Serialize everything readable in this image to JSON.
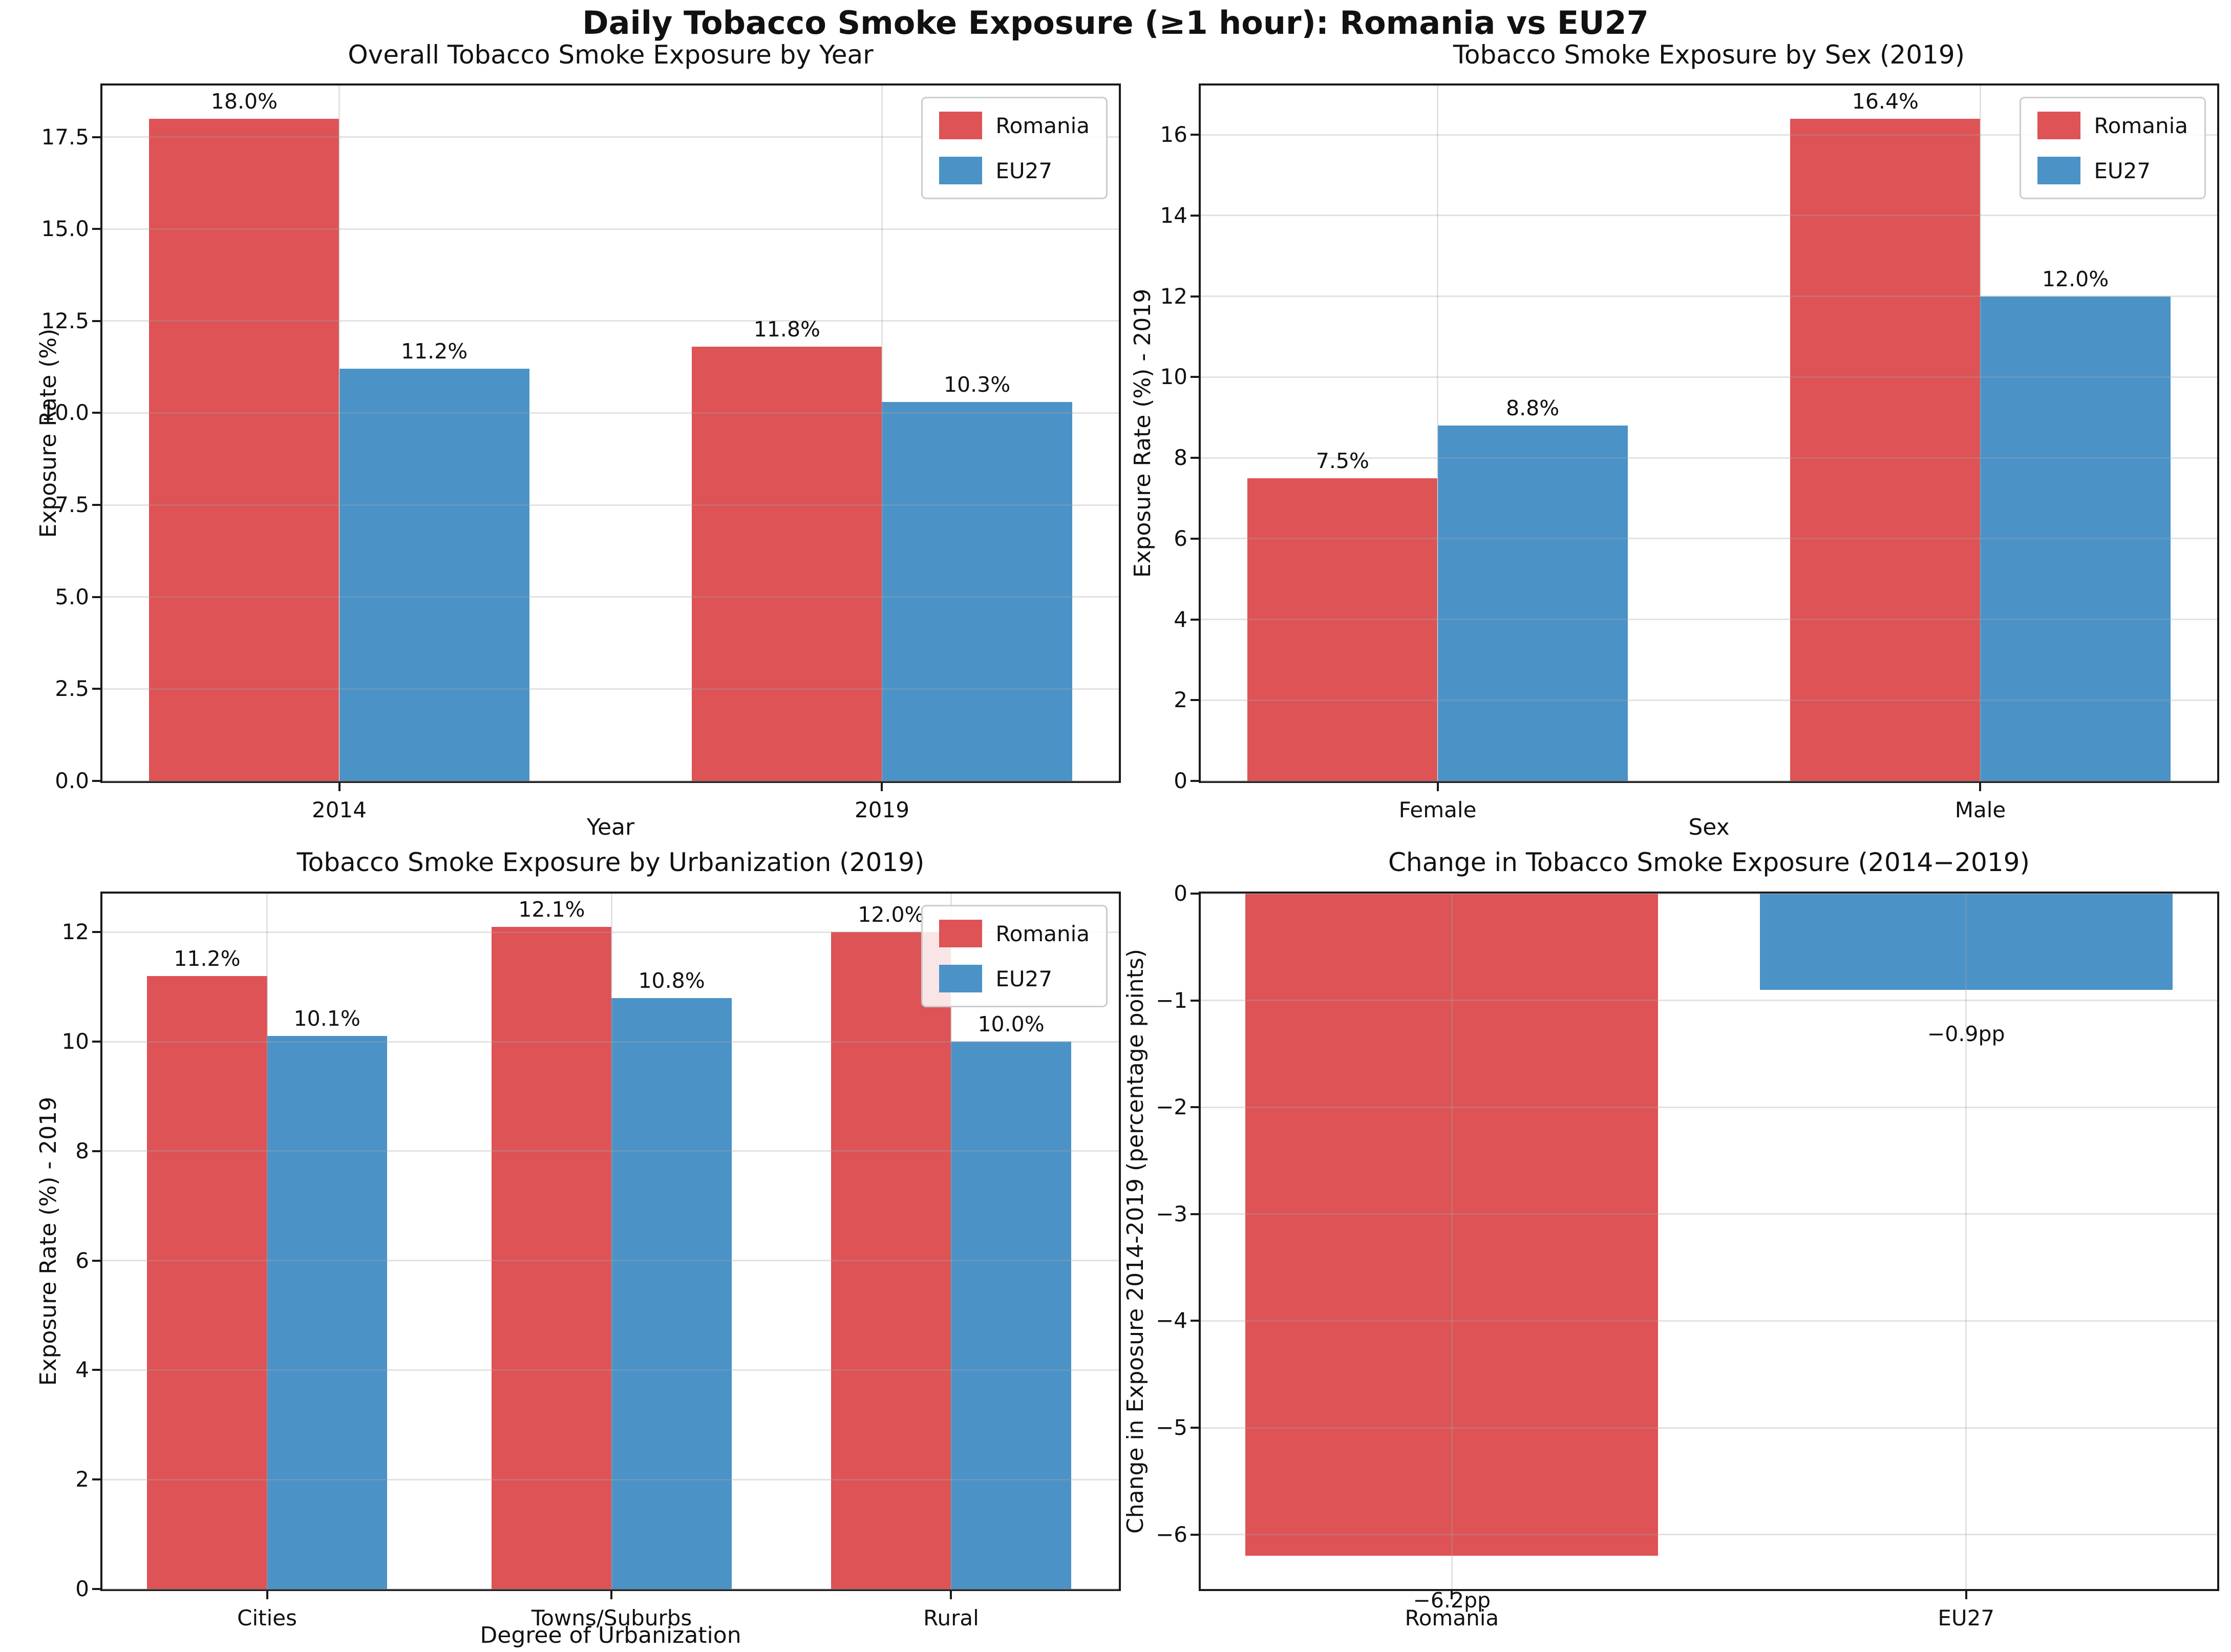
{
  "figure": {
    "title": "Daily Tobacco Smoke Exposure (≥1 hour): Romania vs EU27",
    "colors": {
      "romania": "#dd5356",
      "eu27": "#4b92c7"
    }
  },
  "chart_data": [
    {
      "type": "bar",
      "title": "Overall Tobacco Smoke Exposure by Year",
      "xlabel": "Year",
      "ylabel": "Exposure Rate (%)",
      "categories": [
        "2014",
        "2019"
      ],
      "series": [
        {
          "name": "Romania",
          "color": "#dd5356",
          "values": [
            18.0,
            11.8
          ],
          "labels": [
            "18.0%",
            "11.8%"
          ]
        },
        {
          "name": "EU27",
          "color": "#4b92c7",
          "values": [
            11.2,
            10.3
          ],
          "labels": [
            "11.2%",
            "10.3%"
          ]
        }
      ],
      "ylim": [
        0,
        18.9
      ],
      "yticks": [
        {
          "v": 0,
          "label": "0.0"
        },
        {
          "v": 2.5,
          "label": "2.5"
        },
        {
          "v": 5,
          "label": "5.0"
        },
        {
          "v": 7.5,
          "label": "7.5"
        },
        {
          "v": 10,
          "label": "10.0"
        },
        {
          "v": 12.5,
          "label": "12.5"
        },
        {
          "v": 15,
          "label": "15.0"
        },
        {
          "v": 17.5,
          "label": "17.5"
        }
      ],
      "layout": {
        "centers": [
          0.233,
          0.767
        ],
        "bar_width": 0.187,
        "legend": true,
        "grid": true,
        "legend_position": "upper right"
      }
    },
    {
      "type": "bar",
      "title": "Tobacco Smoke Exposure by Sex (2019)",
      "xlabel": "Sex",
      "ylabel": "Exposure Rate (%) - 2019",
      "categories": [
        "Female",
        "Male"
      ],
      "series": [
        {
          "name": "Romania",
          "color": "#dd5356",
          "values": [
            7.5,
            16.4
          ],
          "labels": [
            "7.5%",
            "16.4%"
          ]
        },
        {
          "name": "EU27",
          "color": "#4b92c7",
          "values": [
            8.8,
            12.0
          ],
          "labels": [
            "8.8%",
            "12.0%"
          ]
        }
      ],
      "ylim": [
        0,
        17.22
      ],
      "yticks": [
        {
          "v": 0,
          "label": "0"
        },
        {
          "v": 2,
          "label": "2"
        },
        {
          "v": 4,
          "label": "4"
        },
        {
          "v": 6,
          "label": "6"
        },
        {
          "v": 8,
          "label": "8"
        },
        {
          "v": 10,
          "label": "10"
        },
        {
          "v": 12,
          "label": "12"
        },
        {
          "v": 14,
          "label": "14"
        },
        {
          "v": 16,
          "label": "16"
        }
      ],
      "layout": {
        "centers": [
          0.233,
          0.767
        ],
        "bar_width": 0.187,
        "legend": true,
        "grid": true,
        "legend_position": "upper right"
      }
    },
    {
      "type": "bar",
      "title": "Tobacco Smoke Exposure by Urbanization (2019)",
      "xlabel": "Degree of Urbanization",
      "ylabel": "Exposure Rate (%) - 2019",
      "categories": [
        "Cities",
        "Towns/Suburbs",
        "Rural"
      ],
      "series": [
        {
          "name": "Romania",
          "color": "#dd5356",
          "values": [
            11.2,
            12.1,
            12.0
          ],
          "labels": [
            "11.2%",
            "12.1%",
            "12.0%"
          ]
        },
        {
          "name": "EU27",
          "color": "#4b92c7",
          "values": [
            10.1,
            10.8,
            10.0
          ],
          "labels": [
            "10.1%",
            "10.8%",
            "10.0%"
          ]
        }
      ],
      "ylim": [
        0,
        12.705
      ],
      "yticks": [
        {
          "v": 0,
          "label": "0"
        },
        {
          "v": 2,
          "label": "2"
        },
        {
          "v": 4,
          "label": "4"
        },
        {
          "v": 6,
          "label": "6"
        },
        {
          "v": 8,
          "label": "8"
        },
        {
          "v": 10,
          "label": "10"
        },
        {
          "v": 12,
          "label": "12"
        }
      ],
      "layout": {
        "centers": [
          0.162,
          0.501,
          0.835
        ],
        "bar_width": 0.118,
        "legend": true,
        "grid": true,
        "legend_position": "upper right"
      }
    },
    {
      "type": "bar",
      "title": "Change in Tobacco Smoke Exposure (2014−2019)",
      "ylabel": "Change in Exposure 2014-2019 (percentage points)",
      "categories": [
        "Romania",
        "EU27"
      ],
      "series": [
        {
          "name": "Change",
          "colors": [
            "#dd5356",
            "#4b92c7"
          ],
          "values": [
            -6.2,
            -0.9
          ],
          "labels": [
            "−6.2pp",
            "−0.9pp"
          ]
        }
      ],
      "ylim": [
        -6.51,
        0
      ],
      "yticks": [
        {
          "v": 0,
          "label": "0"
        },
        {
          "v": -1,
          "label": "−1"
        },
        {
          "v": -2,
          "label": "−2"
        },
        {
          "v": -3,
          "label": "−3"
        },
        {
          "v": -4,
          "label": "−4"
        },
        {
          "v": -5,
          "label": "−5"
        },
        {
          "v": -6,
          "label": "−6"
        }
      ],
      "layout": {
        "centers": [
          0.247,
          0.753
        ],
        "bar_width": 0.406,
        "legend": false,
        "grid": true,
        "label_offset": 0.3
      }
    }
  ]
}
